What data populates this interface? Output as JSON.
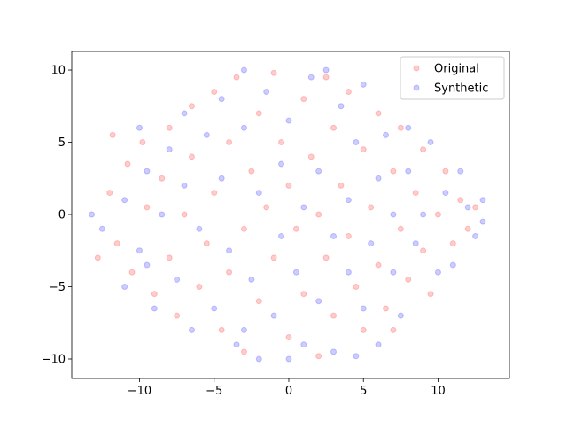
{
  "chart_data": {
    "type": "scatter",
    "series": [
      {
        "name": "Original",
        "color": "#ff0000",
        "x": [
          -12,
          -11.5,
          -10.8,
          -10.5,
          -9.8,
          -9.5,
          -9,
          -8.5,
          -8,
          -8,
          -7.5,
          -7,
          -6.5,
          -6.5,
          -6,
          -5.5,
          -5,
          -5,
          -4.5,
          -4,
          -4,
          -3.5,
          -3,
          -3,
          -2.5,
          -2,
          -2,
          -1.5,
          -1,
          -1,
          -0.5,
          0,
          0,
          0.5,
          1,
          1,
          1.5,
          2,
          2,
          2.5,
          2.5,
          3,
          3,
          3.5,
          4,
          4,
          4.5,
          5,
          5,
          5.5,
          6,
          6,
          6.5,
          7,
          7.5,
          7.5,
          8,
          8.5,
          9,
          9,
          9.5,
          10,
          10.5,
          11,
          11.5,
          12,
          12.5,
          -12.8,
          -11.8,
          7
        ],
        "values": [
          1.5,
          -2,
          3.5,
          -4,
          5,
          0.5,
          -5.5,
          2.5,
          6,
          -3,
          -7,
          0,
          7.5,
          4,
          -5,
          -2,
          8.5,
          1.5,
          -8,
          5,
          -4,
          9.5,
          -1,
          -9.5,
          3,
          7,
          -6,
          0.5,
          9.8,
          -3,
          5,
          -8.5,
          2,
          -1,
          8,
          -5.5,
          4,
          -9.8,
          0,
          9.5,
          -3,
          6,
          -7,
          2,
          -1.5,
          8.5,
          -5,
          4.5,
          -8,
          0.5,
          7,
          -3.5,
          -6.5,
          3,
          -1,
          6,
          -4.5,
          1.5,
          4.5,
          -2.5,
          -5.5,
          0,
          3,
          -2,
          1,
          -1,
          0.5,
          -3,
          5.5,
          -8
        ]
      },
      {
        "name": "Synthetic",
        "color": "#0000ff",
        "x": [
          -13.2,
          -12.5,
          -11,
          -11,
          -10,
          -10,
          -9.5,
          -9,
          -8.5,
          -8,
          -7.5,
          -7,
          -7,
          -6.5,
          -6,
          -5.5,
          -5,
          -4.5,
          -4.5,
          -4,
          -3.5,
          -3,
          -3,
          -2.5,
          -2,
          -2,
          -1.5,
          -1,
          -0.5,
          -0.5,
          0,
          0.5,
          1,
          1,
          1.5,
          2,
          2,
          2.5,
          3,
          3,
          3.5,
          4,
          4,
          4.5,
          5,
          5,
          5.5,
          6,
          6,
          6.5,
          7,
          7,
          7.5,
          8,
          8,
          8.5,
          9,
          9.5,
          10,
          10.5,
          11,
          11.5,
          12,
          12.5,
          13,
          13,
          -3,
          0,
          4.5,
          -9.5
        ],
        "values": [
          0,
          -1,
          1,
          -5,
          6,
          -2.5,
          3,
          -6.5,
          0,
          4.5,
          -4.5,
          7,
          2,
          -8,
          -1,
          5.5,
          -6.5,
          8,
          2.5,
          -2.5,
          -9,
          10,
          6,
          -4.5,
          1.5,
          -10,
          8.5,
          -7,
          3.5,
          -1.5,
          6.5,
          -4,
          0.5,
          -9,
          9.5,
          3,
          -6,
          10,
          -1.5,
          -9.5,
          7.5,
          1,
          -4,
          5,
          -6.5,
          9,
          -2,
          2.5,
          -9,
          5.5,
          -4,
          0,
          -7,
          3,
          6,
          -2,
          0,
          5,
          -4,
          1.5,
          -3.5,
          3,
          0.5,
          -1.5,
          -0.5,
          1,
          -8,
          -10,
          -9.8,
          -3.5
        ]
      }
    ],
    "xlim": [
      -14.54,
      14.78
    ],
    "ylim": [
      -11.35,
      11.29
    ],
    "xticks": [
      {
        "value": -10,
        "label": "−10"
      },
      {
        "value": -5,
        "label": "−5"
      },
      0,
      5,
      10
    ],
    "yticks": [
      {
        "value": -10,
        "label": "−10"
      },
      {
        "value": -5,
        "label": "−5"
      },
      0,
      5,
      10
    ],
    "legend": "upper right",
    "alpha": 0.2
  }
}
